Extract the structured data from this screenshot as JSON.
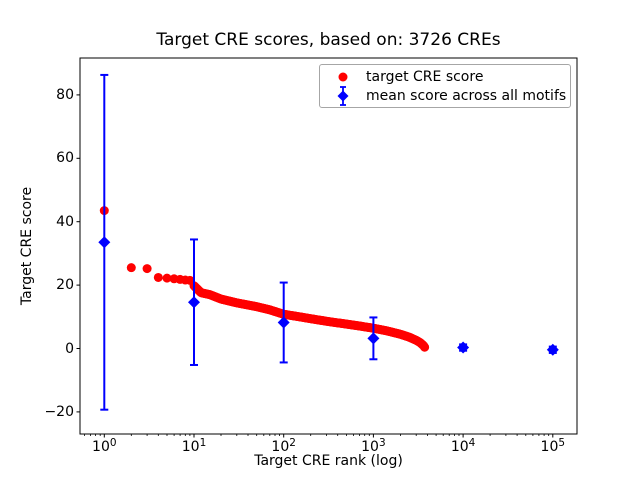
{
  "chart_data": {
    "type": "scatter",
    "title": "Target CRE scores, based on: 3726 CREs",
    "xlabel": "Target CRE rank (log)",
    "ylabel": "Target CRE score",
    "x_scale": "log",
    "xlim": [
      0.54,
      186000
    ],
    "ylim": [
      -27,
      91.6
    ],
    "grid": false,
    "legend_position": "upper right",
    "series": [
      {
        "name": "target CRE score",
        "marker": "circle",
        "color": "#ff0000",
        "n_points": 3726,
        "anchors": [
          [
            1,
            43.5
          ],
          [
            2,
            25.5
          ],
          [
            3,
            25.2
          ],
          [
            4,
            22.4
          ],
          [
            5,
            22.2
          ],
          [
            6,
            22.0
          ],
          [
            7,
            21.8
          ],
          [
            8,
            21.6
          ],
          [
            9,
            21.5
          ],
          [
            10,
            19.8
          ],
          [
            12,
            17.6
          ],
          [
            15,
            17.0
          ],
          [
            20,
            15.6
          ],
          [
            30,
            14.4
          ],
          [
            50,
            13.2
          ],
          [
            70,
            12.2
          ],
          [
            100,
            10.8
          ],
          [
            150,
            10.0
          ],
          [
            200,
            9.4
          ],
          [
            300,
            8.6
          ],
          [
            500,
            7.7
          ],
          [
            700,
            7.1
          ],
          [
            1000,
            6.4
          ],
          [
            1400,
            5.6
          ],
          [
            2000,
            4.5
          ],
          [
            2500,
            3.6
          ],
          [
            3000,
            2.6
          ],
          [
            3300,
            1.9
          ],
          [
            3500,
            1.3
          ],
          [
            3650,
            0.8
          ],
          [
            3726,
            0.4
          ]
        ]
      },
      {
        "name": "mean score across all motifs",
        "marker": "diamond",
        "color": "#0000ff",
        "points": [
          {
            "x": 1,
            "y": 33.5,
            "err": 52.8
          },
          {
            "x": 10,
            "y": 14.6,
            "err": 19.8
          },
          {
            "x": 100,
            "y": 8.2,
            "err": 12.6
          },
          {
            "x": 1000,
            "y": 3.2,
            "err": 6.6
          },
          {
            "x": 10000,
            "y": 0.3,
            "err": 1.0
          },
          {
            "x": 100000,
            "y": -0.4,
            "err": 1.0
          }
        ]
      }
    ]
  },
  "legend": {
    "items": [
      {
        "label": "target CRE score",
        "marker": "circle",
        "color": "#ff0000"
      },
      {
        "label": "mean score across all motifs",
        "marker": "diamond",
        "color": "#0000ff"
      }
    ]
  },
  "axes": {
    "y_ticks": [
      {
        "value": 80,
        "label": "80"
      },
      {
        "value": 60,
        "label": "60"
      },
      {
        "value": 40,
        "label": "40"
      },
      {
        "value": 20,
        "label": "20"
      },
      {
        "value": 0,
        "label": "0"
      },
      {
        "value": -20,
        "label": "−20"
      }
    ],
    "x_ticks": [
      {
        "base": "10",
        "exp": "0"
      },
      {
        "base": "10",
        "exp": "1"
      },
      {
        "base": "10",
        "exp": "2"
      },
      {
        "base": "10",
        "exp": "3"
      },
      {
        "base": "10",
        "exp": "4"
      },
      {
        "base": "10",
        "exp": "5"
      }
    ]
  },
  "colors": {
    "red": "#ff0000",
    "blue": "#0000ff",
    "axis": "#000000",
    "background": "#ffffff",
    "legend_border": "#a6a6a6"
  }
}
